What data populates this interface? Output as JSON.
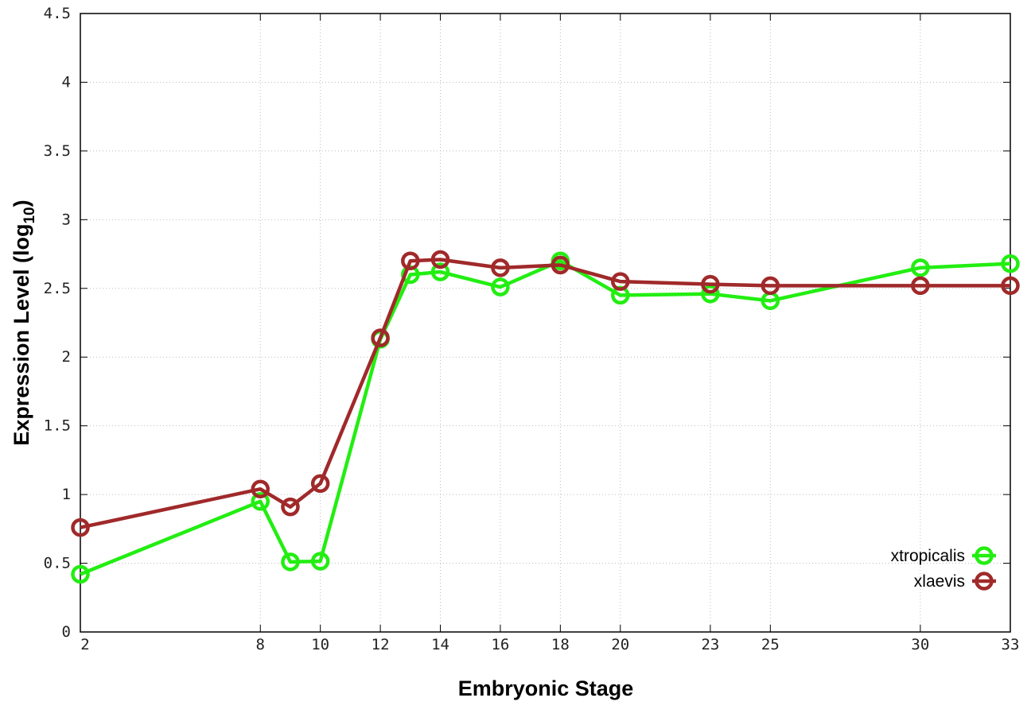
{
  "chart_data": {
    "type": "line",
    "xlabel": "Embryonic Stage",
    "ylabel": "Expression Level (log",
    "ylabel_subscript": "10",
    "ylabel_suffix": ")",
    "x": [
      2,
      8,
      9,
      10,
      12,
      13,
      14,
      16,
      18,
      20,
      23,
      25,
      30,
      33
    ],
    "x_ticks": [
      "2",
      "8",
      "10",
      "12",
      "14",
      "16",
      "18",
      "20",
      "23",
      "25",
      "30",
      "33"
    ],
    "y_ticks": [
      "0",
      "0.5",
      "1",
      "1.5",
      "2",
      "2.5",
      "3",
      "3.5",
      "4",
      "4.5"
    ],
    "xlim": [
      2,
      33
    ],
    "ylim": [
      0,
      4.5
    ],
    "grid": true,
    "legend_position": "bottom-right",
    "series": [
      {
        "name": "xtropicalis",
        "color": "#22ee11",
        "values": [
          0.42,
          0.95,
          0.51,
          0.515,
          2.13,
          2.6,
          2.62,
          2.51,
          2.7,
          2.45,
          2.46,
          2.41,
          2.65,
          2.68
        ]
      },
      {
        "name": "xlaevis",
        "color": "#a0292a",
        "values": [
          0.76,
          1.04,
          0.91,
          1.08,
          2.14,
          2.7,
          2.71,
          2.65,
          2.67,
          2.55,
          2.53,
          2.52,
          2.52,
          2.52
        ]
      }
    ]
  }
}
